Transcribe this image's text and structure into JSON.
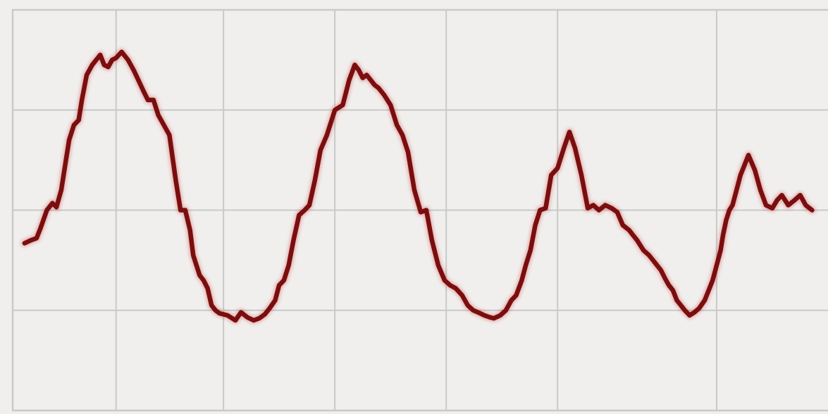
{
  "colors": {
    "background": "#f0efed",
    "grid": "#c9c9c9",
    "line": "#7a0e0e",
    "glow": "#d24a4a"
  },
  "chart_data": {
    "type": "line",
    "grid": true,
    "x_gridlines": [
      1.25,
      2.6,
      4.0,
      5.4,
      6.8,
      8.8
    ],
    "y_gridlines": [
      -2,
      -1,
      0,
      1,
      2
    ],
    "xlim": [
      -0.05,
      10.2
    ],
    "ylim": [
      -2.0,
      2.0
    ],
    "series": [
      {
        "x": [
          0.1,
          0.18,
          0.25,
          0.3,
          0.38,
          0.45,
          0.5,
          0.56,
          0.62,
          0.66,
          0.72,
          0.78,
          0.82,
          0.88,
          0.95,
          1.0,
          1.05,
          1.1,
          1.15,
          1.2,
          1.25,
          1.32,
          1.4,
          1.47,
          1.53,
          1.6,
          1.65,
          1.72,
          1.78,
          1.85,
          1.92,
          2.0,
          2.06,
          2.12,
          2.18,
          2.22,
          2.3,
          2.35,
          2.4,
          2.45,
          2.5,
          2.55,
          2.65,
          2.75,
          2.82,
          2.9,
          2.98,
          3.05,
          3.12,
          3.18,
          3.25,
          3.3,
          3.36,
          3.42,
          3.48,
          3.55,
          3.62,
          3.68,
          3.75,
          3.82,
          3.9,
          4.0,
          4.1,
          4.18,
          4.25,
          4.3,
          4.35,
          4.4,
          4.45,
          4.5,
          4.55,
          4.62,
          4.7,
          4.78,
          4.85,
          4.92,
          5.0,
          5.08,
          5.15,
          5.22,
          5.3,
          5.38,
          5.45,
          5.52,
          5.6,
          5.67,
          5.74,
          5.8,
          5.88,
          5.95,
          6.0,
          6.08,
          6.15,
          6.22,
          6.28,
          6.35,
          6.4,
          6.46,
          6.52,
          6.58,
          6.65,
          6.72,
          6.8,
          6.88,
          6.95,
          7.02,
          7.1,
          7.18,
          7.25,
          7.32,
          7.4,
          7.48,
          7.55,
          7.62,
          7.7,
          7.75,
          7.8,
          7.88,
          7.95,
          8.0,
          8.05,
          8.1,
          8.15,
          8.2,
          8.25,
          8.3,
          8.35,
          8.4,
          8.46,
          8.52,
          8.58,
          8.65,
          8.7,
          8.75,
          8.8,
          8.85,
          8.88,
          8.92,
          8.96,
          9.0,
          9.05,
          9.1,
          9.15,
          9.2,
          9.28,
          9.35,
          9.42,
          9.5,
          9.56,
          9.62,
          9.7,
          9.78,
          9.85,
          9.92,
          10.0
        ],
        "y": [
          -0.33,
          -0.3,
          -0.28,
          -0.18,
          0.0,
          0.07,
          0.03,
          0.2,
          0.5,
          0.7,
          0.85,
          0.9,
          1.1,
          1.35,
          1.45,
          1.5,
          1.55,
          1.45,
          1.43,
          1.5,
          1.52,
          1.58,
          1.5,
          1.4,
          1.3,
          1.18,
          1.1,
          1.1,
          0.95,
          0.85,
          0.75,
          0.3,
          0.0,
          0.0,
          -0.2,
          -0.45,
          -0.65,
          -0.7,
          -0.78,
          -0.95,
          -1.0,
          -1.03,
          -1.05,
          -1.1,
          -1.02,
          -1.07,
          -1.1,
          -1.08,
          -1.04,
          -0.98,
          -0.9,
          -0.75,
          -0.7,
          -0.55,
          -0.3,
          -0.05,
          0.0,
          0.05,
          0.3,
          0.6,
          0.75,
          1.0,
          1.05,
          1.3,
          1.45,
          1.4,
          1.32,
          1.35,
          1.3,
          1.25,
          1.22,
          1.15,
          1.05,
          0.85,
          0.75,
          0.58,
          0.2,
          -0.02,
          0.0,
          -0.3,
          -0.55,
          -0.7,
          -0.75,
          -0.78,
          -0.85,
          -0.95,
          -1.0,
          -1.02,
          -1.05,
          -1.07,
          -1.08,
          -1.05,
          -1.0,
          -0.9,
          -0.85,
          -0.7,
          -0.55,
          -0.4,
          -0.15,
          0.0,
          0.02,
          0.35,
          0.42,
          0.62,
          0.78,
          0.62,
          0.35,
          0.02,
          0.05,
          0.0,
          0.05,
          0.02,
          -0.02,
          -0.15,
          -0.2,
          -0.25,
          -0.3,
          -0.4,
          -0.45,
          -0.5,
          -0.55,
          -0.6,
          -0.68,
          -0.75,
          -0.8,
          -0.9,
          -0.95,
          -1.0,
          -1.05,
          -1.02,
          -0.98,
          -0.9,
          -0.8,
          -0.7,
          -0.55,
          -0.4,
          -0.25,
          -0.1,
          0.0,
          0.05,
          0.2,
          0.35,
          0.45,
          0.55,
          0.4,
          0.2,
          0.05,
          0.02,
          0.1,
          0.15,
          0.05,
          0.1,
          0.15,
          0.05,
          0.0
        ]
      }
    ]
  }
}
